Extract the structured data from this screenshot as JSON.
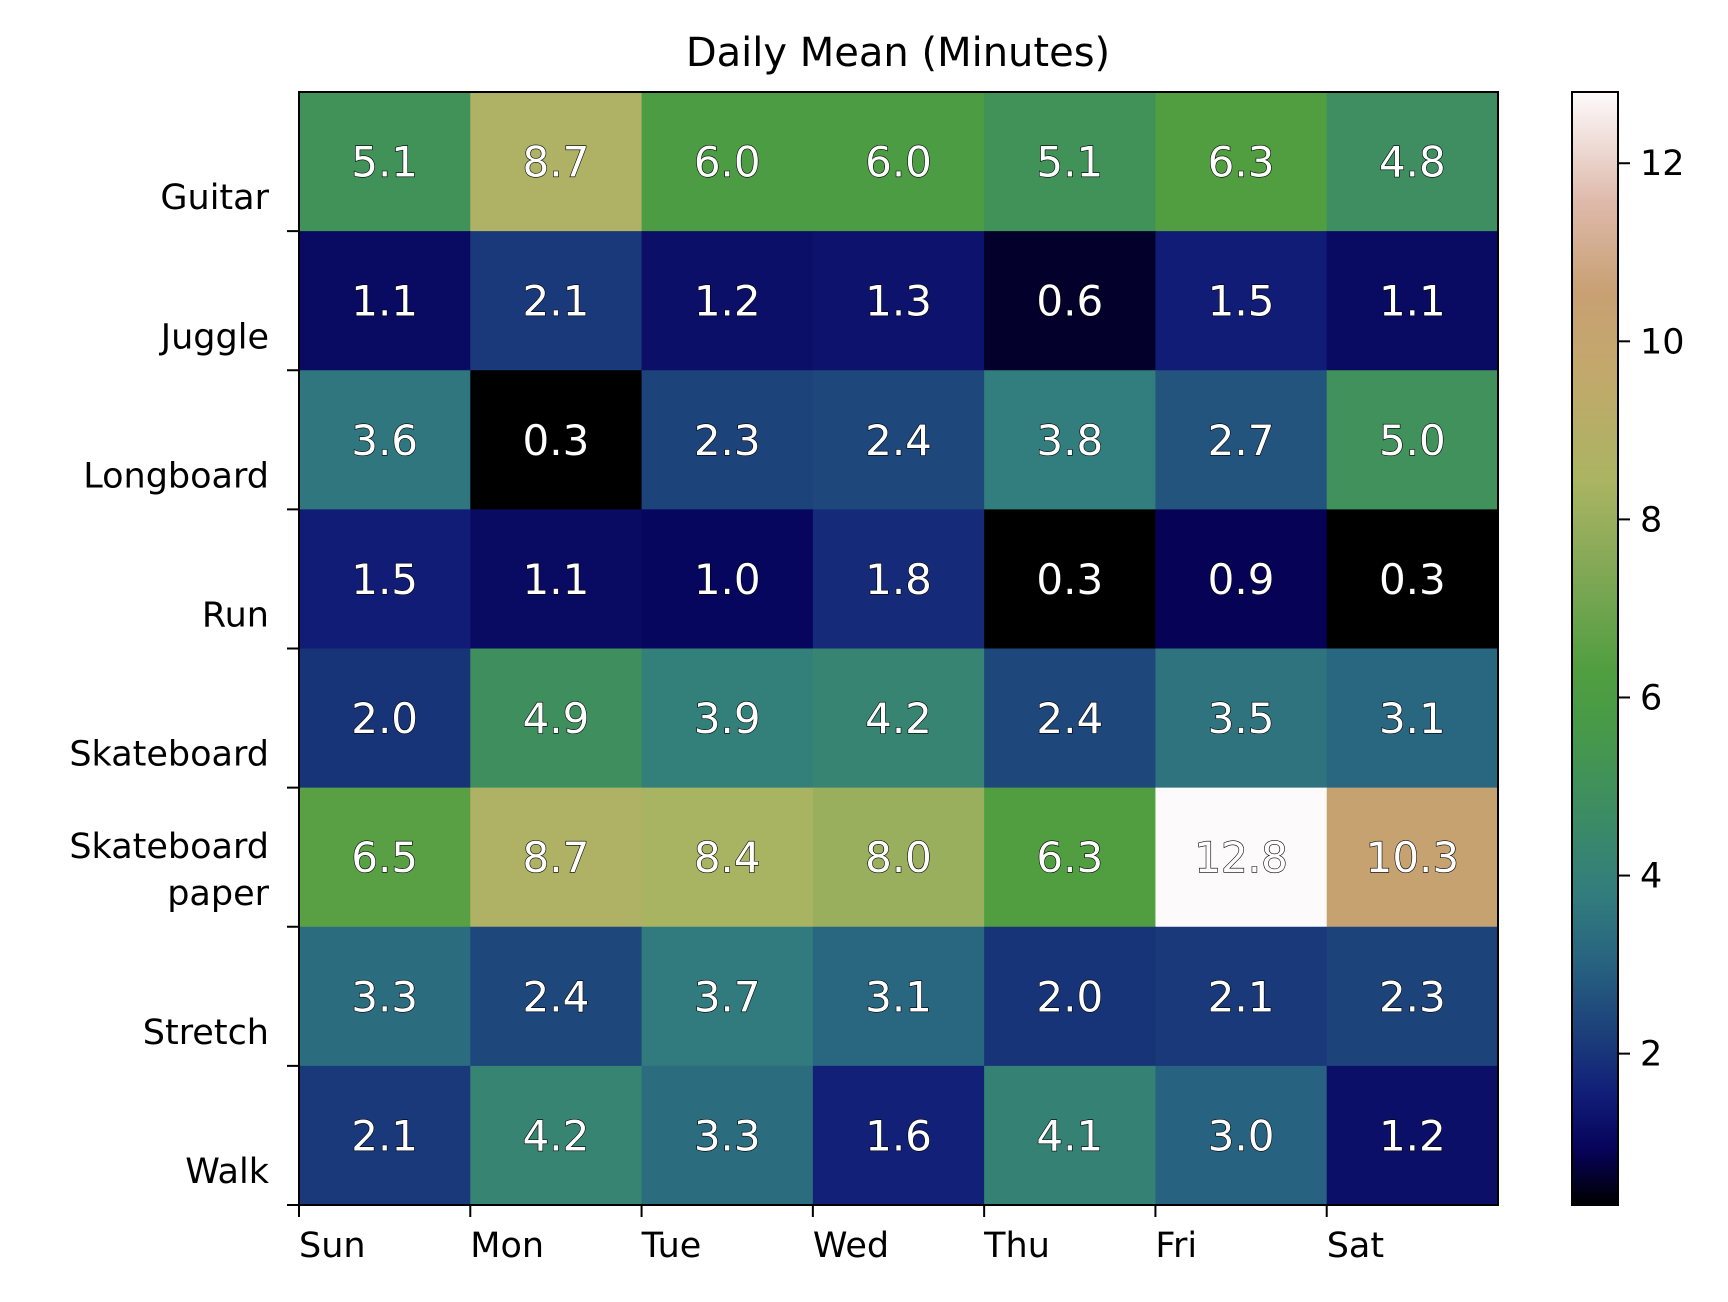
{
  "chart_data": {
    "type": "heatmap",
    "title": "Daily Mean (Minutes)",
    "xlabel": "",
    "ylabel": "",
    "x_categories": [
      "Sun",
      "Mon",
      "Tue",
      "Wed",
      "Thu",
      "Fri",
      "Sat"
    ],
    "y_categories": [
      "Guitar",
      "Juggle",
      "Longboard",
      "Run",
      "Skateboard",
      "Skateboard\npaper",
      "Stretch",
      "Walk"
    ],
    "values": [
      [
        5.1,
        8.7,
        6.0,
        6.0,
        5.1,
        6.3,
        4.8
      ],
      [
        1.1,
        2.1,
        1.2,
        1.3,
        0.6,
        1.5,
        1.1
      ],
      [
        3.6,
        0.3,
        2.3,
        2.4,
        3.8,
        2.7,
        5.0
      ],
      [
        1.5,
        1.1,
        1.0,
        1.8,
        0.3,
        0.9,
        0.3
      ],
      [
        2.0,
        4.9,
        3.9,
        4.2,
        2.4,
        3.5,
        3.1
      ],
      [
        6.5,
        8.7,
        8.4,
        8.0,
        6.3,
        12.8,
        10.3
      ],
      [
        3.3,
        2.4,
        3.7,
        3.1,
        2.0,
        2.1,
        2.3
      ],
      [
        2.1,
        4.2,
        3.3,
        1.6,
        4.1,
        3.0,
        1.2
      ]
    ],
    "value_labels": [
      [
        "5.1",
        "8.7",
        "6.0",
        "6.0",
        "5.1",
        "6.3",
        "4.8"
      ],
      [
        "1.1",
        "2.1",
        "1.2",
        "1.3",
        "0.6",
        "1.5",
        "1.1"
      ],
      [
        "3.6",
        "0.3",
        "2.3",
        "2.4",
        "3.8",
        "2.7",
        "5.0"
      ],
      [
        "1.5",
        "1.1",
        "1.0",
        "1.8",
        "0.3",
        "0.9",
        "0.3"
      ],
      [
        "2.0",
        "4.9",
        "3.9",
        "4.2",
        "2.4",
        "3.5",
        "3.1"
      ],
      [
        "6.5",
        "8.7",
        "8.4",
        "8.0",
        "6.3",
        "12.8",
        "10.3"
      ],
      [
        "3.3",
        "2.4",
        "3.7",
        "3.1",
        "2.0",
        "2.1",
        "2.3"
      ],
      [
        "2.1",
        "4.2",
        "3.3",
        "1.6",
        "4.1",
        "3.0",
        "1.2"
      ]
    ],
    "colormap": "gist_earth",
    "colorbar": {
      "range": [
        0.3,
        12.8
      ],
      "ticks": [
        2,
        4,
        6,
        8,
        10,
        12
      ],
      "tick_labels": [
        "2",
        "4",
        "6",
        "8",
        "10",
        "12"
      ]
    },
    "grid": false,
    "legend": "colorbar-right"
  }
}
